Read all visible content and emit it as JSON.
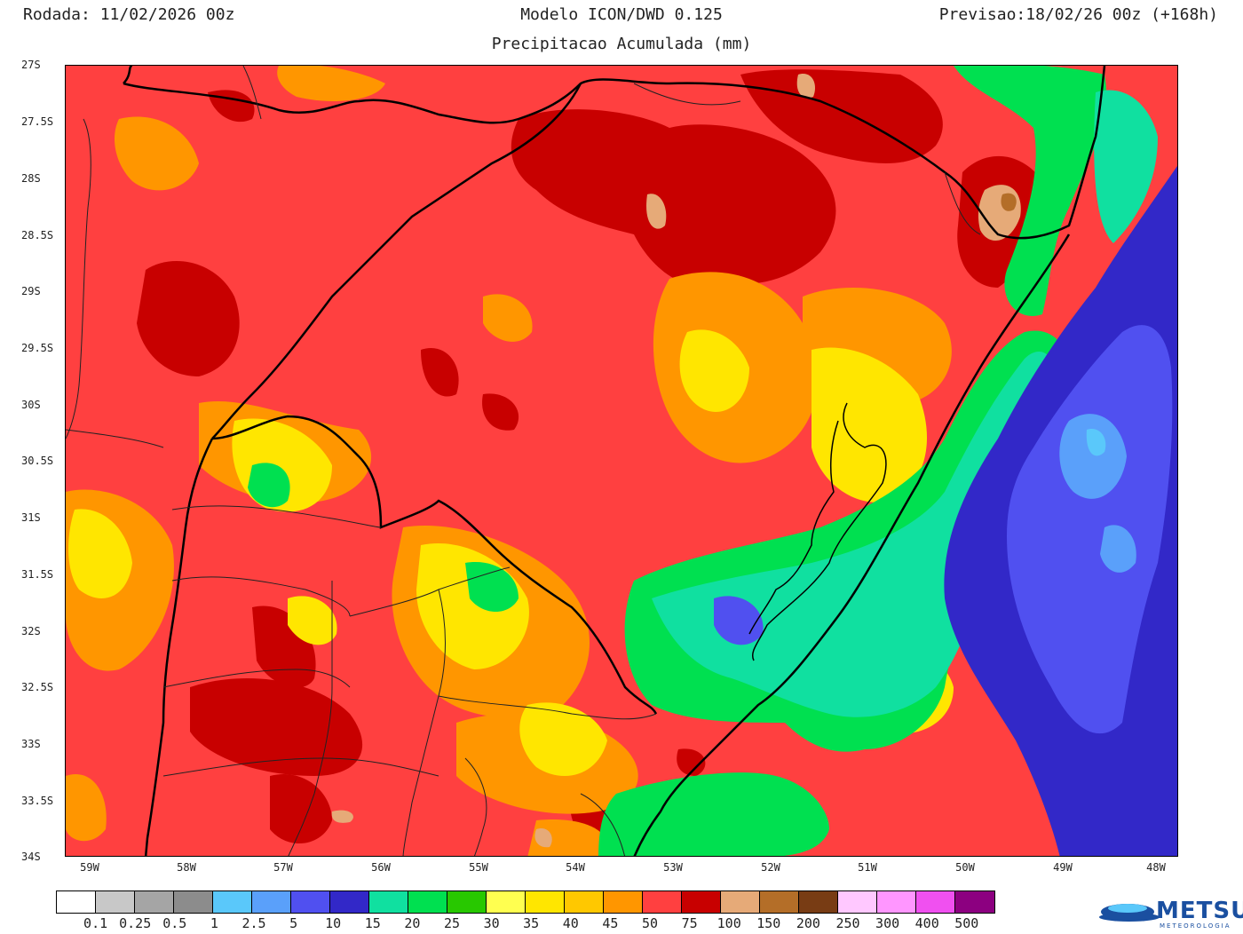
{
  "header": {
    "run": "Rodada: 11/02/2026 00z",
    "model": "Modelo ICON/DWD 0.125",
    "forecast": "Previsao:18/02/26 00z (+168h)",
    "subtitle": "Precipitacao Acumulada (mm)"
  },
  "map": {
    "lat_labels": [
      "27S",
      "27.5S",
      "28S",
      "28.5S",
      "29S",
      "29.5S",
      "30S",
      "30.5S",
      "31S",
      "31.5S",
      "32S",
      "32.5S",
      "33S",
      "33.5S",
      "34S"
    ],
    "lon_labels": [
      "59W",
      "58W",
      "57W",
      "56W",
      "55W",
      "54W",
      "53W",
      "52W",
      "51W",
      "50W",
      "49W",
      "48W"
    ],
    "background_color": "#ff4040"
  },
  "colorbar": {
    "colors": [
      "#ffffff",
      "#c8c8c8",
      "#a5a5a5",
      "#8c8c8c",
      "#5ac8fa",
      "#5aa0fa",
      "#5050f0",
      "#3228c8",
      "#10e0a0",
      "#00e050",
      "#28c800",
      "#ffff50",
      "#ffe600",
      "#ffc800",
      "#ff9600",
      "#ff4040",
      "#c80000",
      "#e6aa78",
      "#b46e28",
      "#783c14",
      "#ffc8ff",
      "#ff96ff",
      "#f050f0",
      "#8c0080"
    ],
    "labels": [
      "0.1",
      "0.25",
      "0.5",
      "1",
      "2.5",
      "5",
      "10",
      "15",
      "20",
      "25",
      "30",
      "35",
      "40",
      "45",
      "50",
      "75",
      "100",
      "150",
      "200",
      "250",
      "300",
      "400",
      "500"
    ]
  },
  "logo": {
    "name": "METSUL",
    "tagline": "METEOROLOGIA"
  }
}
